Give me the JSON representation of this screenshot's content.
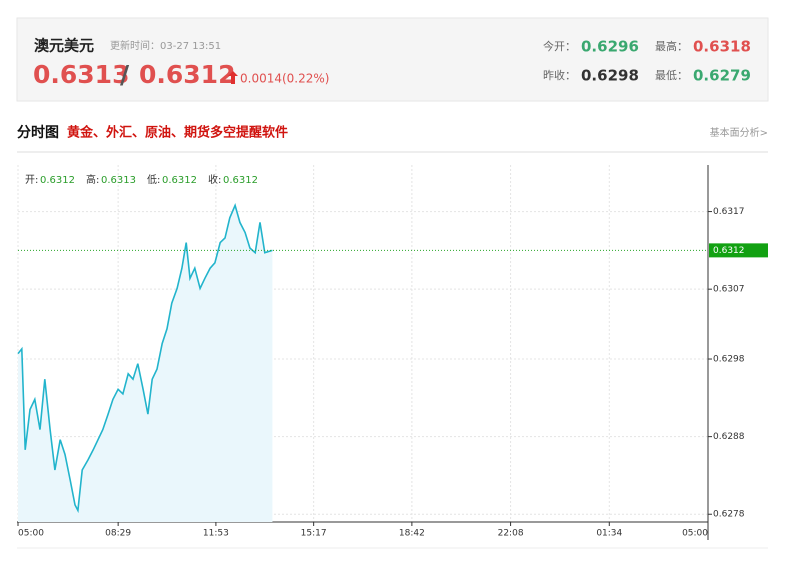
{
  "header": {
    "title": "澳元美元",
    "update_time": "更新时间：03-27 13:51",
    "price_bid": "0.6313",
    "separator": "/",
    "price_ask": "0.6312",
    "change": "0.0014(0.22%)",
    "stats": [
      {
        "label": "今开：",
        "value": "0.6296"
      },
      {
        "label": "最高：",
        "value": "0.6318"
      },
      {
        "label": "昨收：",
        "value": "0.6298"
      },
      {
        "label": "最低：",
        "value": "0.6279"
      }
    ]
  },
  "section": {
    "title": "分时图",
    "promo": "黄金、外汇、原油、期货多空提醒软件",
    "link": "基本面分析>"
  },
  "ohlc": [
    {
      "label": "开:",
      "value": "0.6312"
    },
    {
      "label": "高:",
      "value": "0.6313"
    },
    {
      "label": "低:",
      "value": "0.6312"
    },
    {
      "label": "收:",
      "value": "0.6312"
    }
  ],
  "chart_data": {
    "type": "line",
    "x": [
      0,
      8,
      15,
      25,
      35,
      46,
      56,
      67,
      77,
      88,
      98,
      109,
      119,
      125,
      134,
      146,
      157,
      167,
      177,
      188,
      198,
      209,
      219,
      230,
      240,
      250,
      261,
      271,
      280,
      290,
      301,
      311,
      321,
      332,
      342,
      351,
      359,
      369,
      380,
      390,
      401,
      411,
      422,
      432,
      442,
      453,
      463,
      474,
      484,
      495,
      505,
      515,
      531
    ],
    "series": [
      {
        "color": "#22b4cc",
        "values": [
          0.62987,
          0.62993,
          0.62863,
          0.62915,
          0.62928,
          0.62889,
          0.62954,
          0.62889,
          0.62837,
          0.62876,
          0.62857,
          0.62824,
          0.62792,
          0.62785,
          0.62837,
          0.6285,
          0.62863,
          0.62876,
          0.62889,
          0.62909,
          0.62928,
          0.62941,
          0.62935,
          0.62961,
          0.62954,
          0.62974,
          0.62941,
          0.62909,
          0.62954,
          0.62967,
          0.63,
          0.63019,
          0.63052,
          0.63071,
          0.63097,
          0.6313,
          0.63084,
          0.63097,
          0.63071,
          0.63084,
          0.63097,
          0.63104,
          0.6313,
          0.63136,
          0.63162,
          0.63178,
          0.63156,
          0.63143,
          0.63123,
          0.63117,
          0.63156,
          0.63117,
          0.6312
        ]
      }
    ],
    "xlim": [
      0,
      1440
    ],
    "xticks": [
      {
        "value": 0,
        "label": "05:00"
      },
      {
        "value": 209,
        "label": "08:29"
      },
      {
        "value": 413,
        "label": "11:53"
      },
      {
        "value": 617,
        "label": "15:17"
      },
      {
        "value": 822,
        "label": "18:42"
      },
      {
        "value": 1028,
        "label": "22:08"
      },
      {
        "value": 1234,
        "label": "01:34"
      },
      {
        "value": 1440,
        "label": "05:00"
      }
    ],
    "ylim": [
      0.6277,
      0.6323
    ],
    "yticks": [
      0.6278,
      0.6288,
      0.6298,
      0.6307,
      0.6317
    ],
    "last_price": 0.6312,
    "grid": true
  }
}
